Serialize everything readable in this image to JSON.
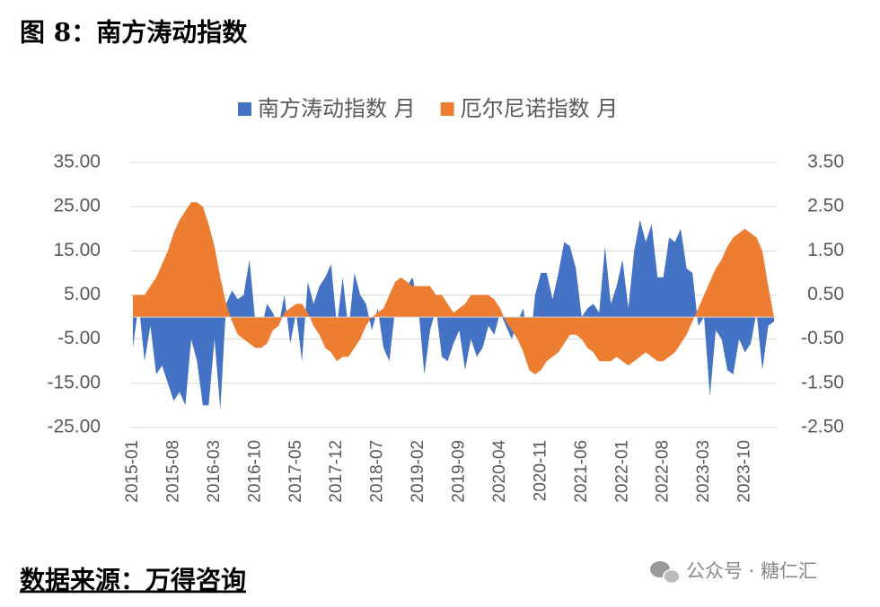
{
  "chart_data": {
    "type": "area",
    "title": "图 8：南方涛动指数",
    "source": "数据来源：万得咨询",
    "watermark": "公众号 · 糖仁汇",
    "categories": [
      "2015-01",
      null,
      null,
      null,
      null,
      null,
      null,
      "2015-08",
      null,
      null,
      null,
      null,
      null,
      null,
      "2016-03",
      null,
      null,
      null,
      null,
      null,
      null,
      "2016-10",
      null,
      null,
      null,
      null,
      null,
      null,
      "2017-05",
      null,
      null,
      null,
      null,
      null,
      null,
      "2017-12",
      null,
      null,
      null,
      null,
      null,
      null,
      "2018-07",
      null,
      null,
      null,
      null,
      null,
      null,
      "2019-02",
      null,
      null,
      null,
      null,
      null,
      null,
      "2019-09",
      null,
      null,
      null,
      null,
      null,
      null,
      "2020-04",
      null,
      null,
      null,
      null,
      null,
      null,
      "2020-11",
      null,
      null,
      null,
      null,
      null,
      null,
      "2021-06",
      null,
      null,
      null,
      null,
      null,
      null,
      "2022-01",
      null,
      null,
      null,
      null,
      null,
      null,
      "2022-08",
      null,
      null,
      null,
      null,
      null,
      null,
      "2023-03",
      null,
      null,
      null,
      null,
      null,
      null,
      "2023-10",
      null,
      null,
      null,
      null,
      null
    ],
    "series": [
      {
        "name": "南方涛动指数 月",
        "color": "#4472c4",
        "axis": "y",
        "values": [
          -7,
          3,
          -10,
          -2,
          -13,
          -11,
          -15,
          -19,
          -17,
          -20,
          -5,
          -10,
          -20,
          -20,
          -5,
          -21,
          3,
          6,
          4,
          5,
          13,
          -1,
          -3,
          3,
          1,
          -2,
          5,
          -6,
          1,
          -10,
          8,
          3,
          7,
          9,
          12,
          -2,
          9,
          -3,
          10,
          5,
          3,
          -3,
          2,
          -7,
          -10,
          2,
          5,
          7,
          9,
          2,
          -13,
          -3,
          2,
          -9,
          -10,
          -6,
          -3,
          -12,
          -5,
          -9,
          -7,
          -2,
          -4,
          1,
          -2,
          -5,
          -1,
          2,
          -9,
          5,
          10,
          10,
          4,
          10,
          17,
          16,
          11,
          0,
          2,
          3,
          1,
          16,
          3,
          7,
          13,
          2,
          15,
          22,
          17,
          21,
          9,
          9,
          18,
          17,
          20,
          11,
          10,
          -2,
          0,
          -18,
          -3,
          -5,
          -12,
          -13,
          -5,
          -8,
          -6,
          1,
          -12,
          -2,
          -1
        ]
      },
      {
        "name": "厄尔尼诺指数 月",
        "color": "#ed7d31",
        "axis": "y2",
        "values": [
          0.5,
          0.5,
          0.5,
          0.7,
          0.9,
          1.2,
          1.5,
          1.9,
          2.2,
          2.4,
          2.6,
          2.6,
          2.5,
          2.1,
          1.6,
          0.9,
          0.3,
          -0.1,
          -0.4,
          -0.5,
          -0.6,
          -0.7,
          -0.7,
          -0.6,
          -0.3,
          -0.2,
          0.1,
          0.2,
          0.3,
          0.3,
          0.1,
          -0.2,
          -0.4,
          -0.7,
          -0.8,
          -1.0,
          -0.9,
          -0.9,
          -0.7,
          -0.5,
          -0.2,
          0.0,
          0.1,
          0.2,
          0.5,
          0.8,
          0.9,
          0.8,
          0.7,
          0.7,
          0.7,
          0.7,
          0.5,
          0.5,
          0.3,
          0.1,
          0.2,
          0.3,
          0.5,
          0.5,
          0.5,
          0.5,
          0.4,
          0.2,
          -0.1,
          -0.3,
          -0.5,
          -0.8,
          -1.2,
          -1.3,
          -1.2,
          -1.0,
          -0.9,
          -0.8,
          -0.6,
          -0.4,
          -0.4,
          -0.5,
          -0.7,
          -0.8,
          -1.0,
          -1.0,
          -1.0,
          -0.9,
          -1.0,
          -1.1,
          -1.0,
          -0.9,
          -0.8,
          -0.9,
          -1.0,
          -1.0,
          -0.9,
          -0.8,
          -0.6,
          -0.4,
          -0.1,
          0.2,
          0.5,
          0.8,
          1.1,
          1.3,
          1.6,
          1.8,
          1.9,
          2.0,
          1.9,
          1.8,
          1.5,
          0.7,
          0.0
        ]
      }
    ],
    "ylim": [
      -25,
      35
    ],
    "yticks": [
      {
        "value": -25,
        "label": "-25.00"
      },
      {
        "value": -15,
        "label": "-15.00"
      },
      {
        "value": -5,
        "label": "-5.00"
      },
      {
        "value": 5,
        "label": "5.00"
      },
      {
        "value": 15,
        "label": "15.00"
      },
      {
        "value": 25,
        "label": "25.00"
      },
      {
        "value": 35,
        "label": "35.00"
      }
    ],
    "y2lim": [
      -2.5,
      3.5
    ],
    "y2ticks": [
      {
        "value": -2.5,
        "label": "-2.50"
      },
      {
        "value": -1.5,
        "label": "-1.50"
      },
      {
        "value": -0.5,
        "label": "-0.50"
      },
      {
        "value": 0.5,
        "label": "0.50"
      },
      {
        "value": 1.5,
        "label": "1.50"
      },
      {
        "value": 2.5,
        "label": "2.50"
      },
      {
        "value": 3.5,
        "label": "3.50"
      }
    ],
    "grid": true,
    "legend": "top"
  }
}
